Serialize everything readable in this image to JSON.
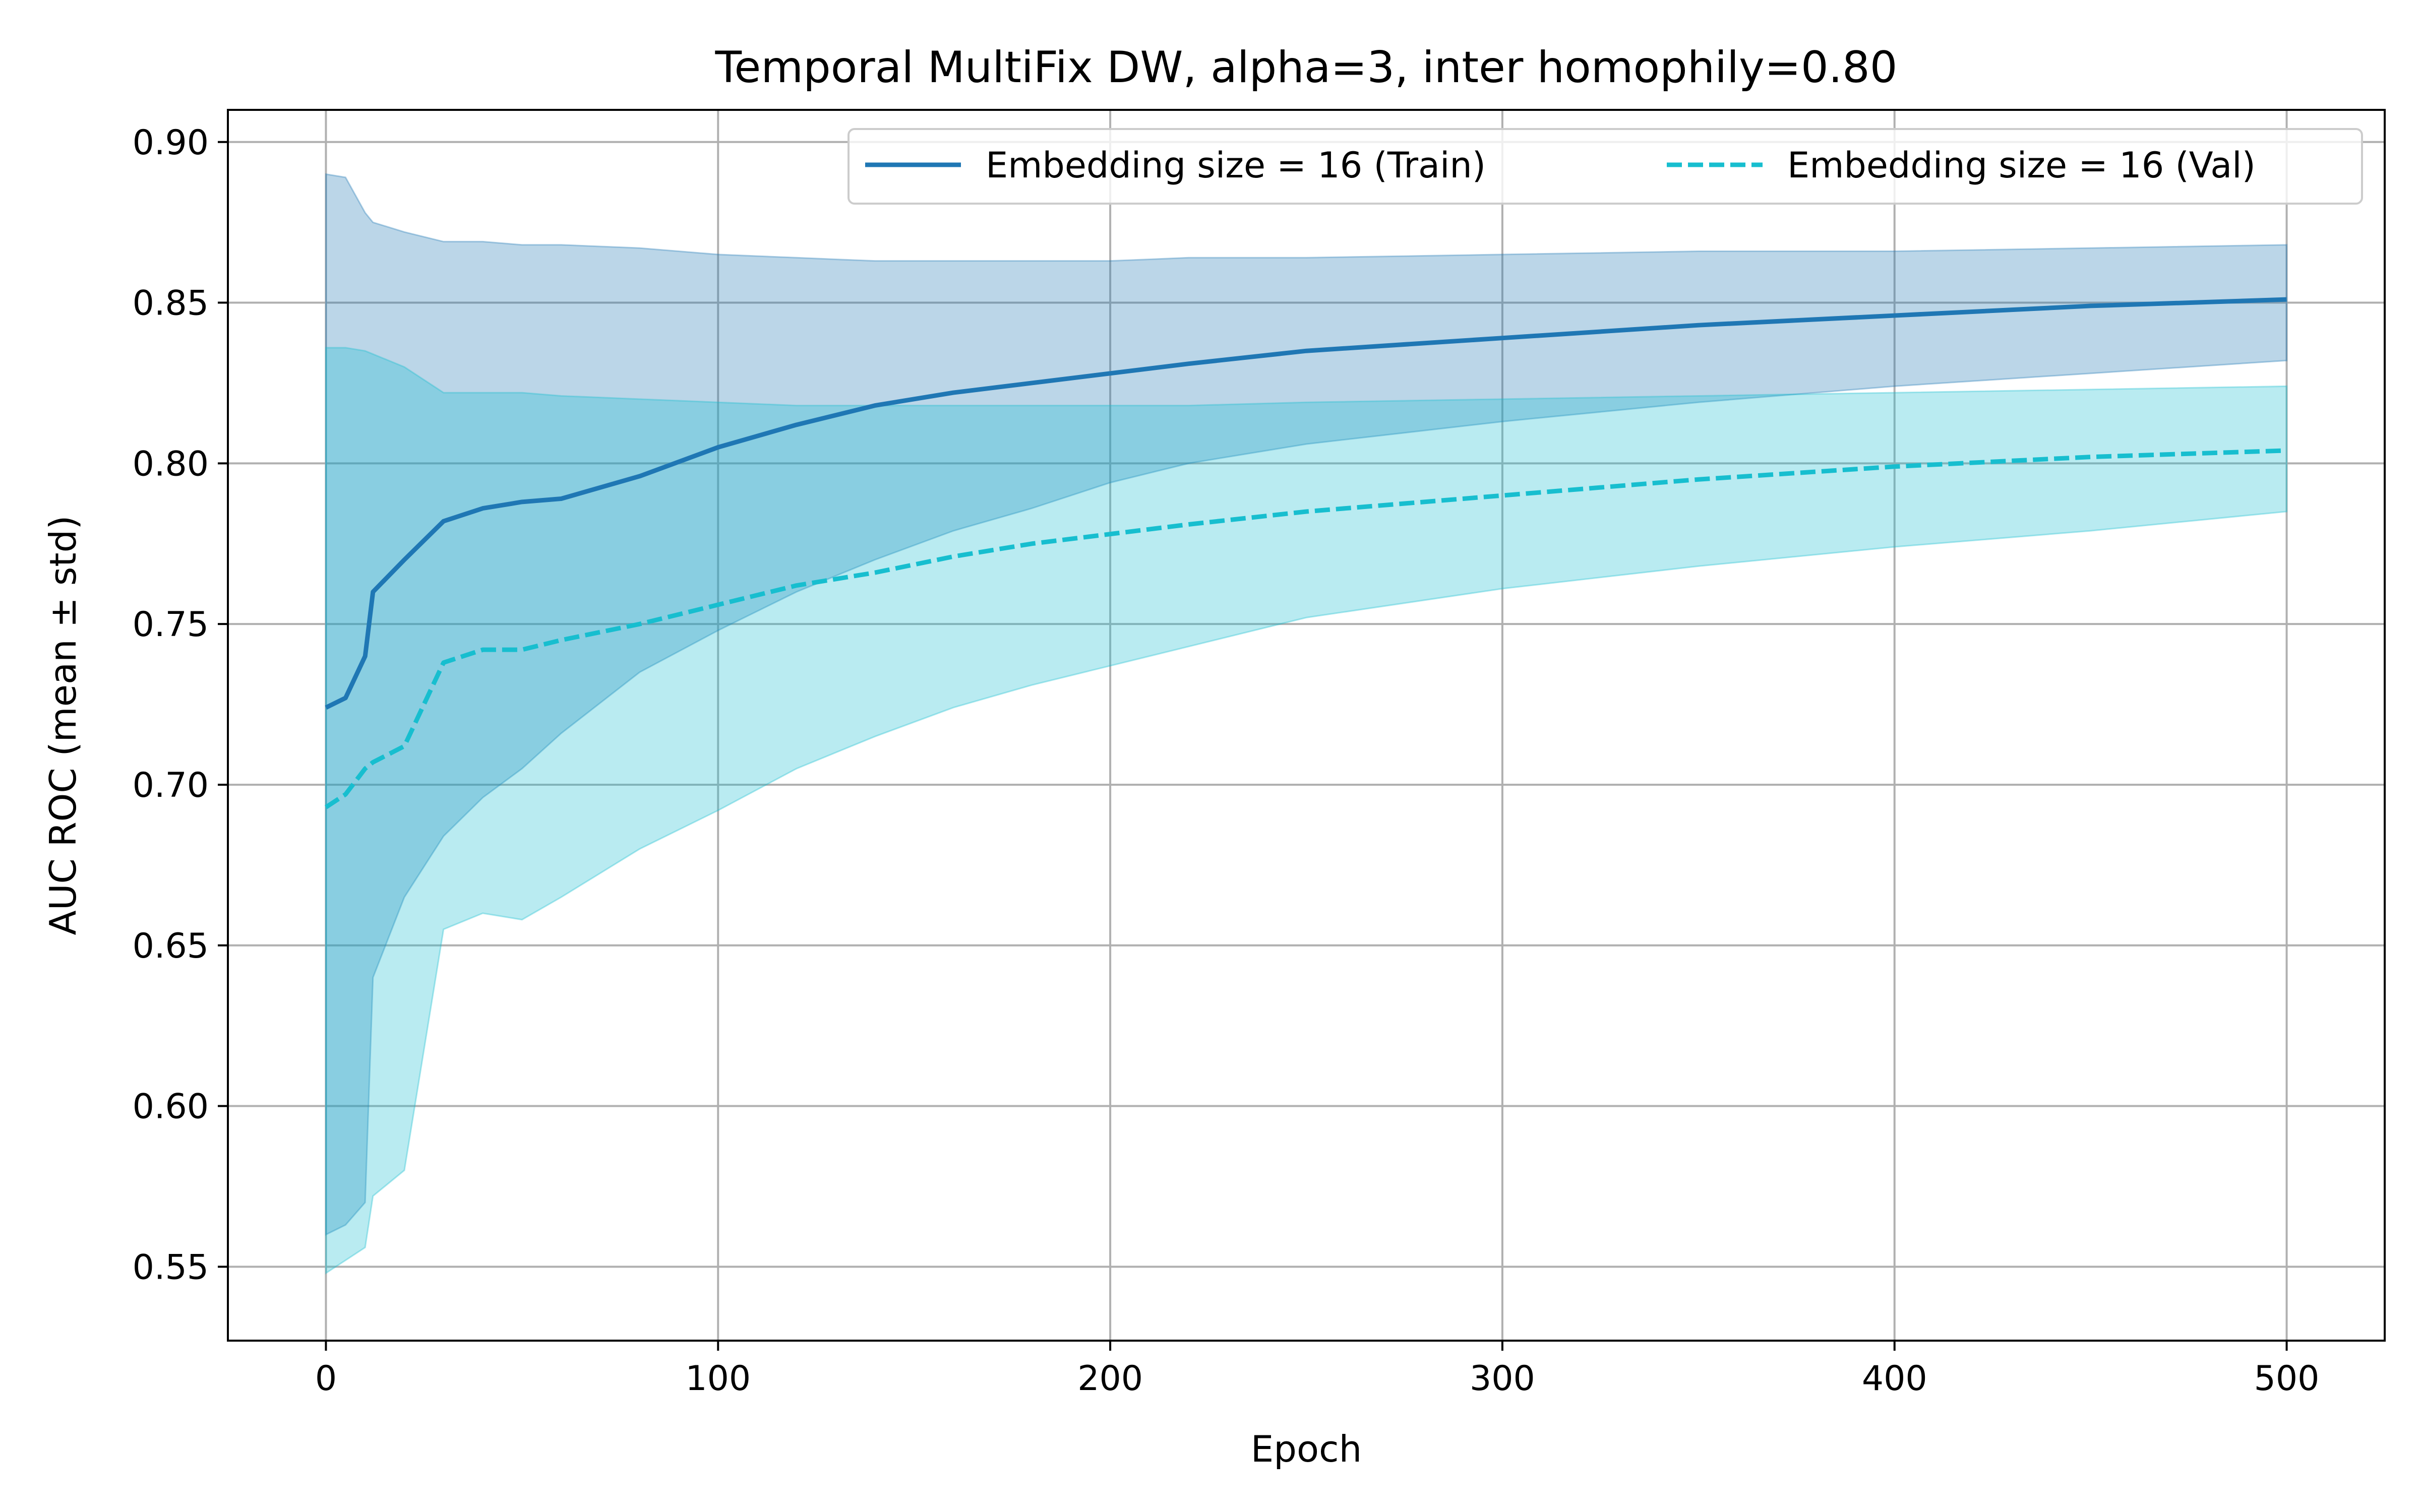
{
  "chart_data": {
    "type": "line",
    "title": "Temporal MultiFix DW, alpha=3, inter homophily=0.80",
    "xlabel": "Epoch",
    "ylabel": "AUC ROC (mean ± std)",
    "xlim": [
      -25,
      525
    ],
    "ylim": [
      0.527,
      0.91
    ],
    "xticks": [
      0,
      100,
      200,
      300,
      400,
      500
    ],
    "yticks": [
      0.55,
      0.6,
      0.65,
      0.7,
      0.75,
      0.8,
      0.85,
      0.9
    ],
    "grid": true,
    "legend_position": "top-right",
    "x": [
      0,
      5,
      10,
      12,
      20,
      30,
      40,
      50,
      60,
      80,
      100,
      120,
      140,
      160,
      180,
      200,
      220,
      250,
      300,
      350,
      400,
      450,
      500
    ],
    "series": [
      {
        "name": "Embedding size = 16 (Train)",
        "color": "#1f77b4",
        "linestyle": "solid",
        "band_color": "#1f77b4",
        "values": [
          0.724,
          0.727,
          0.74,
          0.76,
          0.77,
          0.782,
          0.786,
          0.788,
          0.789,
          0.796,
          0.805,
          0.812,
          0.818,
          0.822,
          0.825,
          0.828,
          0.831,
          0.835,
          0.839,
          0.843,
          0.846,
          0.849,
          0.851
        ],
        "lower": [
          0.56,
          0.563,
          0.57,
          0.64,
          0.665,
          0.684,
          0.696,
          0.705,
          0.716,
          0.735,
          0.748,
          0.76,
          0.77,
          0.779,
          0.786,
          0.794,
          0.8,
          0.806,
          0.813,
          0.819,
          0.824,
          0.828,
          0.832
        ],
        "upper": [
          0.89,
          0.889,
          0.878,
          0.875,
          0.872,
          0.869,
          0.869,
          0.868,
          0.868,
          0.867,
          0.865,
          0.864,
          0.863,
          0.863,
          0.863,
          0.863,
          0.864,
          0.864,
          0.865,
          0.866,
          0.866,
          0.867,
          0.868
        ]
      },
      {
        "name": "Embedding size = 16 (Val)",
        "color": "#17becf",
        "linestyle": "dashed",
        "band_color": "#17becf",
        "values": [
          0.693,
          0.697,
          0.705,
          0.707,
          0.712,
          0.738,
          0.742,
          0.742,
          0.745,
          0.75,
          0.756,
          0.762,
          0.766,
          0.771,
          0.775,
          0.778,
          0.781,
          0.785,
          0.79,
          0.795,
          0.799,
          0.802,
          0.804
        ],
        "lower": [
          0.548,
          0.552,
          0.556,
          0.572,
          0.58,
          0.655,
          0.66,
          0.658,
          0.665,
          0.68,
          0.692,
          0.705,
          0.715,
          0.724,
          0.731,
          0.737,
          0.743,
          0.752,
          0.761,
          0.768,
          0.774,
          0.779,
          0.785
        ],
        "upper": [
          0.836,
          0.836,
          0.835,
          0.834,
          0.83,
          0.822,
          0.822,
          0.822,
          0.821,
          0.82,
          0.819,
          0.818,
          0.818,
          0.818,
          0.818,
          0.818,
          0.818,
          0.819,
          0.82,
          0.821,
          0.822,
          0.823,
          0.824
        ]
      }
    ]
  }
}
